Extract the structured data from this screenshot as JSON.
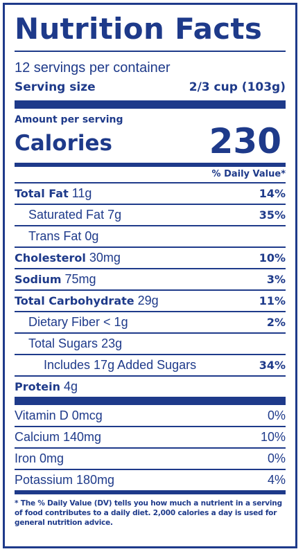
{
  "title": "Nutrition Facts",
  "servings_per_container": "12 servings per container",
  "serving_size": {
    "label": "Serving size",
    "value": "2/3 cup (103g)"
  },
  "amount_per_serving": "Amount per serving",
  "calories": {
    "label": "Calories",
    "value": "230"
  },
  "dv_header": "% Daily Value*",
  "nutrients": [
    {
      "name": "Total Fat",
      "amount": "11g",
      "dv": "14%"
    },
    {
      "name": "Saturated Fat",
      "amount": "7g",
      "dv": "35%"
    },
    {
      "name": "Trans Fat",
      "amount": "0g",
      "dv": ""
    },
    {
      "name": "Cholesterol",
      "amount": "30mg",
      "dv": "10%"
    },
    {
      "name": "Sodium",
      "amount": "75mg",
      "dv": "3%"
    },
    {
      "name": "Total Carbohydrate",
      "amount": "29g",
      "dv": "11%"
    },
    {
      "name": "Dietary Fiber",
      "amount": "< 1g",
      "dv": "2%"
    },
    {
      "name": "Total Sugars",
      "amount": "23g",
      "dv": ""
    },
    {
      "name": "Includes 17g Added Sugars",
      "amount": "",
      "dv": "34%"
    },
    {
      "name": "Protein",
      "amount": "4g",
      "dv": ""
    }
  ],
  "vitamins": [
    {
      "name": "Vitamin D 0mcg",
      "dv": "0%"
    },
    {
      "name": "Calcium 140mg",
      "dv": "10%"
    },
    {
      "name": "Iron 0mg",
      "dv": "0%"
    },
    {
      "name": "Potassium 180mg",
      "dv": "4%"
    }
  ],
  "footnote": "* The % Daily Value (DV) tells you how much a nutrient in a serving of food contributes to a daily diet. 2,000 calories a day is used for general nutrition advice.",
  "colors": {
    "ink": "#1e3a8a",
    "background": "#ffffff"
  }
}
